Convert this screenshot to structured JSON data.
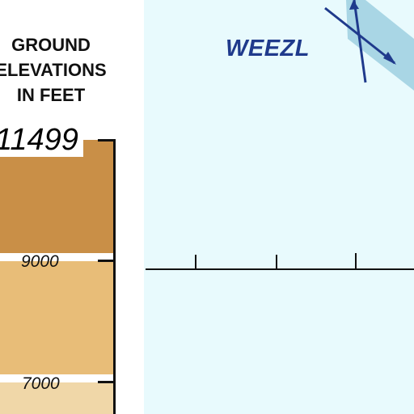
{
  "legend": {
    "title_lines": [
      "GROUND",
      "ELEVATIONS",
      "IN FEET"
    ],
    "max_elevation": "11499",
    "tick_labels": [
      "9000",
      "7000"
    ],
    "band_colors": [
      "#c98f47",
      "#e8bd78",
      "#f0d7a8"
    ]
  },
  "map": {
    "waypoint_name": "WEEZL",
    "background_color": "#e8fafd",
    "route_color": "#1f3a8c",
    "airway_color": "#a9d6e5"
  }
}
